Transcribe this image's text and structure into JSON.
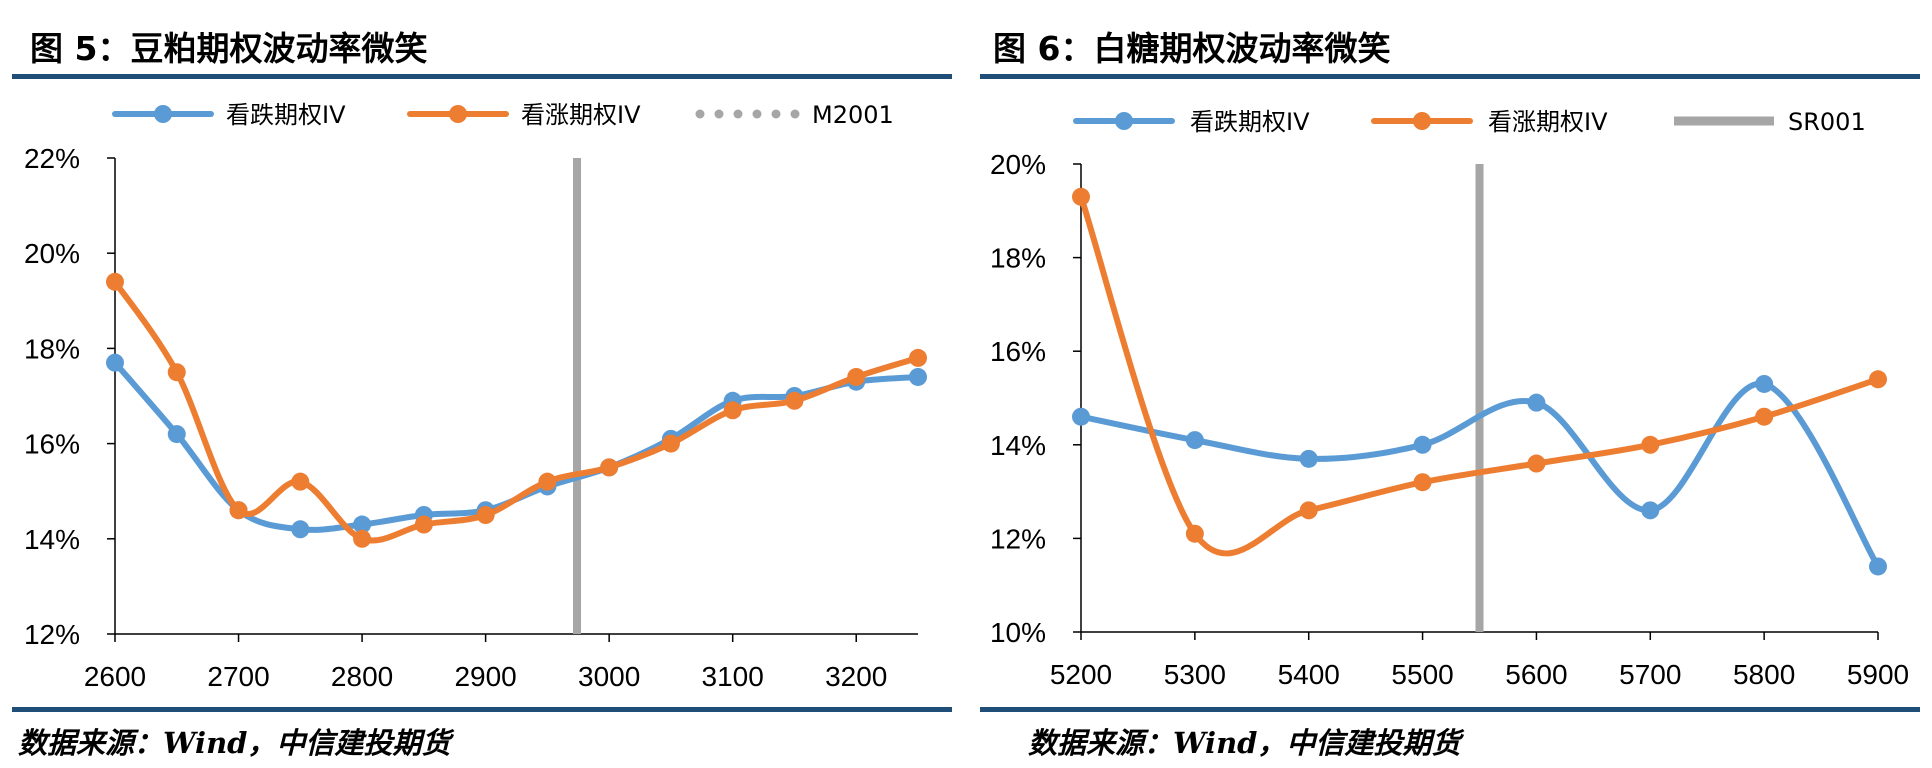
{
  "figures": [
    {
      "title": "图  5：豆粕期权波动率微笑",
      "source": "数据来源：Wind，中信建投期货"
    },
    {
      "title": "图 6：白糖期权波动率微笑",
      "source": "数据来源：Wind，中信建投期货"
    }
  ],
  "colors": {
    "blue": "#5b9bd5",
    "orange": "#ed7d31",
    "gray": "#a6a6a6",
    "rule": "#1f4e79"
  },
  "chart_data": [
    {
      "type": "line",
      "title": "",
      "xlabel": "",
      "ylabel": "",
      "x": [
        2600,
        2650,
        2700,
        2750,
        2800,
        2850,
        2900,
        2950,
        3000,
        3050,
        3100,
        3150,
        3200,
        3250
      ],
      "xlim": [
        2600,
        3250
      ],
      "xticks": [
        2600,
        2700,
        2800,
        2900,
        3000,
        3100,
        3200
      ],
      "xtick_labels": [
        "2600",
        "2700",
        "2800",
        "2900",
        "3000",
        "3100",
        "3200"
      ],
      "ylim": [
        0.12,
        0.22
      ],
      "yticks": [
        0.12,
        0.14,
        0.16,
        0.18,
        0.2,
        0.22
      ],
      "ytick_labels": [
        "12%",
        "14%",
        "16%",
        "18%",
        "20%",
        "22%"
      ],
      "series": [
        {
          "name": "看跌期权IV",
          "color": "#5b9bd5",
          "values": [
            0.177,
            0.162,
            0.146,
            0.142,
            0.143,
            0.145,
            0.146,
            0.151,
            0.155,
            0.161,
            0.169,
            0.17,
            0.173,
            0.174
          ]
        },
        {
          "name": "看涨期权IV",
          "color": "#ed7d31",
          "values": [
            0.194,
            0.175,
            0.146,
            0.152,
            0.14,
            0.143,
            0.145,
            0.152,
            0.155,
            0.16,
            0.167,
            0.169,
            0.174,
            0.178
          ]
        }
      ],
      "vline": {
        "name": "M2001",
        "x": 2974,
        "color": "#a6a6a6",
        "legend_style": "dotted"
      },
      "legend": "top",
      "grid": false
    },
    {
      "type": "line",
      "title": "",
      "xlabel": "",
      "ylabel": "",
      "x": [
        5200,
        5300,
        5400,
        5500,
        5600,
        5700,
        5800,
        5900
      ],
      "xlim": [
        5200,
        5900
      ],
      "xticks": [
        5200,
        5300,
        5400,
        5500,
        5600,
        5700,
        5800,
        5900
      ],
      "xtick_labels": [
        "5200",
        "5300",
        "5400",
        "5500",
        "5600",
        "5700",
        "5800",
        "5900"
      ],
      "ylim": [
        0.1,
        0.2
      ],
      "yticks": [
        0.1,
        0.12,
        0.14,
        0.16,
        0.18,
        0.2
      ],
      "ytick_labels": [
        "10%",
        "12%",
        "14%",
        "16%",
        "18%",
        "20%"
      ],
      "series": [
        {
          "name": "看跌期权IV",
          "color": "#5b9bd5",
          "values": [
            0.146,
            0.141,
            0.137,
            0.14,
            0.149,
            0.126,
            0.153,
            0.114
          ]
        },
        {
          "name": "看涨期权IV",
          "color": "#ed7d31",
          "values": [
            0.193,
            0.121,
            0.126,
            0.132,
            0.136,
            0.14,
            0.146,
            0.154
          ]
        }
      ],
      "vline": {
        "name": "SR001",
        "x": 5550,
        "color": "#a6a6a6",
        "legend_style": "solid"
      },
      "legend": "top",
      "grid": false
    }
  ]
}
